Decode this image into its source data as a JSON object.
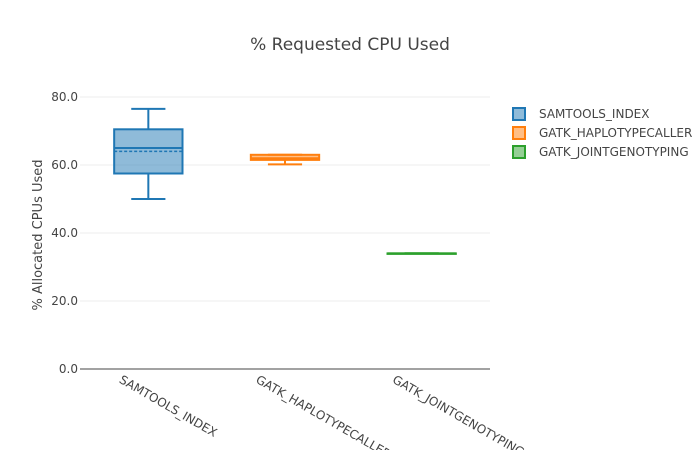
{
  "chart_data": {
    "type": "box",
    "title": "% Requested CPU Used",
    "xlabel": "",
    "ylabel": "% Allocated CPUs Used",
    "ylim": [
      0,
      85
    ],
    "yticks": [
      "0.0",
      "20.0",
      "40.0",
      "60.0",
      "80.0"
    ],
    "ytick_values": [
      0,
      20,
      40,
      60,
      80
    ],
    "grid": true,
    "legend_position": "top-right",
    "categories": [
      "SAMTOOLS_INDEX",
      "GATK_HAPLOTYPECALLER",
      "GATK_JOINTGENOTYPING"
    ],
    "series": [
      {
        "name": "SAMTOOLS_INDEX",
        "color": "#1f77b4",
        "min": 50,
        "q1": 57.5,
        "median": 65,
        "q3": 70.5,
        "max": 76.5,
        "mean": 64
      },
      {
        "name": "GATK_HAPLOTYPECALLER",
        "color": "#ff7f0e",
        "min": 60.2,
        "q1": 61.5,
        "median": 62,
        "q3": 63,
        "max": 63,
        "mean": 62
      },
      {
        "name": "GATK_JOINTGENOTYPING",
        "color": "#2ca02c",
        "min": 34,
        "q1": 34,
        "median": 34,
        "q3": 34,
        "max": 34,
        "mean": 34
      }
    ]
  }
}
